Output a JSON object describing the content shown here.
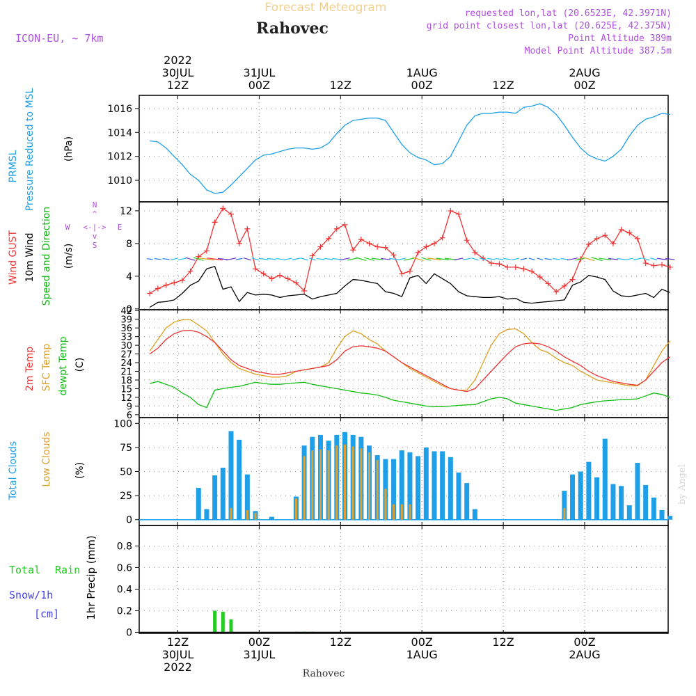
{
  "header": {
    "product": "Forecast Meteogram",
    "location": "Rahovec",
    "model": "ICON-EU, ~ 7km",
    "requested": "requested lon,lat (20.6523E, 42.3971N)",
    "grid_point": "grid point closest lon,lat (20.625E, 42.375N)",
    "point_altitude": "Point Altitude 389m",
    "model_altitude": "Model Point Altitude 387.5m"
  },
  "footer": {
    "location": "Rahovec",
    "credit": "by Angel"
  },
  "time_axis": {
    "ticks": [
      "12Z",
      "00Z",
      "12Z",
      "00Z",
      "12Z",
      "00Z"
    ],
    "top_dates": [
      {
        "tick": 0,
        "lines": [
          "2022",
          "30JUL",
          "12Z"
        ]
      },
      {
        "tick": 1,
        "lines": [
          "31JUL",
          "00Z"
        ]
      },
      {
        "tick": 2,
        "lines": [
          "12Z"
        ]
      },
      {
        "tick": 3,
        "lines": [
          "1AUG",
          "00Z"
        ]
      },
      {
        "tick": 4,
        "lines": [
          "12Z"
        ]
      },
      {
        "tick": 5,
        "lines": [
          "2AUG",
          "00Z"
        ]
      }
    ],
    "bottom_dates": [
      {
        "tick": 0,
        "lines": [
          "12Z",
          "30JUL",
          "2022"
        ]
      },
      {
        "tick": 1,
        "lines": [
          "00Z",
          "31JUL"
        ]
      },
      {
        "tick": 2,
        "lines": [
          "12Z"
        ]
      },
      {
        "tick": 3,
        "lines": [
          "00Z",
          "1AUG"
        ]
      },
      {
        "tick": 4,
        "lines": [
          "12Z"
        ]
      },
      {
        "tick": 5,
        "lines": [
          "00Z",
          "2AUG"
        ]
      }
    ]
  },
  "panel_labels": {
    "pressure": {
      "lines": [
        "PRMSL",
        "Pressure Reduced to MSL"
      ],
      "unit": "(hPa)"
    },
    "wind": {
      "gust": "Wind GUST",
      "wind": "10m Wind",
      "dir": "Speed and Direction",
      "unit": "(m/s)",
      "compass": {
        "n": "N",
        "s": "S",
        "w": "W",
        "e": "E",
        "mid": "<-|->",
        "vert1": "^",
        "vert2": "|",
        "vert3": "v"
      }
    },
    "temp": {
      "t2m": "2m Temp",
      "sfc": "SFC Temp",
      "dew": "dewpt Temp",
      "unit": "(C)"
    },
    "clouds": {
      "total": "Total Clouds",
      "low": "Low Clouds",
      "unit": "(%)"
    },
    "precip": {
      "total": "Total",
      "rain": "Rain",
      "snow": "Snow/1h",
      "cm": "[cm]",
      "axis": "1hr Precip (mm)"
    }
  },
  "colors": {
    "pressure": "#1E9FE8",
    "gust": "#EE3333",
    "wind": "#000000",
    "t2m": "#EE3333",
    "sfc": "#E0A020",
    "dew": "#11BB11",
    "total_cloud": "#1E9FE8",
    "low_cloud": "#E0A030",
    "rain": "#22CC22",
    "snow": "#4444EE",
    "header_orange": "#F0D090",
    "header_purple": "#B050E0"
  },
  "chart_data": [
    {
      "type": "line",
      "id": "pressure",
      "ylabel": "(hPa)",
      "yticks": [
        1010,
        1012,
        1014,
        1016
      ],
      "ylim": [
        1008.2,
        1017.1
      ],
      "x_hours": [
        0,
        1,
        2,
        3,
        4,
        5,
        6,
        7,
        8,
        9,
        10,
        11,
        12,
        13,
        14,
        15,
        16,
        17,
        18,
        19,
        20,
        21,
        22,
        23,
        24,
        25,
        26,
        27,
        28,
        29,
        30,
        31,
        32,
        33,
        34,
        35,
        36,
        37,
        38,
        39,
        40,
        41,
        42,
        43,
        44,
        45,
        46,
        47,
        48,
        49,
        50,
        51,
        52,
        53,
        54,
        55,
        56,
        57,
        58,
        59,
        60,
        61,
        62,
        63,
        64
      ],
      "series": [
        {
          "name": "PRMSL",
          "values": [
            1013.3,
            1013.2,
            1012.7,
            1012.0,
            1011.3,
            1010.5,
            1010.0,
            1009.2,
            1008.9,
            1009.0,
            1009.6,
            1010.3,
            1011.0,
            1011.7,
            1012.1,
            1012.2,
            1012.4,
            1012.6,
            1012.7,
            1012.7,
            1012.6,
            1012.7,
            1013.1,
            1013.9,
            1014.6,
            1015.0,
            1015.1,
            1015.2,
            1015.2,
            1015.0,
            1014.0,
            1013.0,
            1012.3,
            1011.9,
            1011.7,
            1011.3,
            1011.4,
            1012.0,
            1013.3,
            1014.6,
            1015.4,
            1015.6,
            1015.6,
            1015.7,
            1015.7,
            1015.6,
            1016.1,
            1016.2,
            1016.4,
            1016.1,
            1015.5,
            1014.6,
            1013.6,
            1012.7,
            1012.1,
            1011.8,
            1011.6,
            1012.0,
            1012.6,
            1013.7,
            1014.6,
            1015.1,
            1015.3,
            1015.6,
            1015.5
          ]
        }
      ]
    },
    {
      "type": "line",
      "id": "wind",
      "ylabel": "(m/s)",
      "yticks": [
        0,
        4,
        8,
        12
      ],
      "ylim": [
        -0.1,
        13.1
      ],
      "x_hours": [
        0,
        1,
        2,
        3,
        4,
        5,
        6,
        7,
        8,
        9,
        10,
        11,
        12,
        13,
        14,
        15,
        16,
        17,
        18,
        19,
        20,
        21,
        22,
        23,
        24,
        25,
        26,
        27,
        28,
        29,
        30,
        31,
        32,
        33,
        34,
        35,
        36,
        37,
        38,
        39,
        40,
        41,
        42,
        43,
        44,
        45,
        46,
        47,
        48,
        49,
        50,
        51,
        52,
        53,
        54,
        55,
        56,
        57,
        58,
        59,
        60,
        61,
        62,
        63,
        64
      ],
      "series": [
        {
          "name": "Wind GUST",
          "values": [
            1.9,
            2.5,
            2.9,
            3.2,
            3.5,
            4.6,
            6.4,
            7.1,
            10.6,
            12.3,
            11.6,
            8.0,
            9.8,
            4.9,
            4.3,
            3.7,
            4.1,
            3.7,
            3.2,
            2.2,
            6.5,
            7.6,
            8.6,
            9.8,
            10.3,
            7.2,
            8.5,
            8.0,
            7.6,
            7.5,
            6.6,
            4.3,
            4.6,
            6.9,
            7.6,
            8.0,
            8.7,
            12.0,
            11.6,
            8.4,
            6.9,
            6.2,
            5.6,
            5.5,
            5.1,
            5.1,
            4.9,
            4.6,
            3.9,
            3.1,
            2.1,
            2.8,
            3.6,
            6.1,
            7.9,
            8.6,
            9.0,
            8.0,
            9.7,
            9.3,
            8.6,
            5.6,
            5.3,
            5.4,
            5.1
          ]
        },
        {
          "name": "10m Wind",
          "values": [
            0.2,
            0.8,
            0.9,
            1.1,
            1.9,
            2.9,
            3.4,
            4.9,
            5.2,
            2.4,
            2.7,
            0.9,
            2.0,
            1.7,
            1.8,
            1.7,
            1.4,
            1.6,
            1.7,
            1.8,
            1.2,
            1.5,
            1.7,
            1.9,
            2.8,
            3.6,
            3.5,
            3.3,
            3.1,
            2.1,
            1.9,
            1.5,
            3.8,
            4.1,
            3.1,
            4.3,
            3.7,
            3.1,
            2.1,
            1.6,
            1.5,
            1.4,
            1.4,
            1.5,
            1.2,
            1.3,
            0.8,
            0.7,
            0.8,
            0.9,
            1.0,
            1.1,
            2.9,
            3.3,
            4.1,
            3.9,
            3.6,
            2.2,
            1.6,
            1.5,
            1.7,
            1.9,
            1.4,
            2.4,
            2.0
          ]
        }
      ]
    },
    {
      "type": "line",
      "id": "temperature",
      "ylabel": "(C)",
      "yticks": [
        6,
        9,
        12,
        15,
        18,
        21,
        24,
        27,
        30,
        33,
        36,
        39,
        42
      ],
      "ylim": [
        5.0,
        42.3
      ],
      "x_hours": [
        0,
        1,
        2,
        3,
        4,
        5,
        6,
        7,
        8,
        9,
        10,
        11,
        12,
        13,
        14,
        15,
        16,
        17,
        18,
        19,
        20,
        21,
        22,
        23,
        24,
        25,
        26,
        27,
        28,
        29,
        30,
        31,
        32,
        33,
        34,
        35,
        36,
        37,
        38,
        39,
        40,
        41,
        42,
        43,
        44,
        45,
        46,
        47,
        48,
        49,
        50,
        51,
        52,
        53,
        54,
        55,
        56,
        57,
        58,
        59,
        60,
        61,
        62,
        63,
        64
      ],
      "series": [
        {
          "name": "2m Temp",
          "values": [
            27,
            29,
            32,
            34,
            35,
            35.2,
            34.5,
            33,
            31,
            28,
            25,
            23,
            22,
            21,
            20.5,
            20,
            20,
            20.5,
            21,
            21.5,
            22,
            22.5,
            23,
            25,
            28,
            29.5,
            29.8,
            29.5,
            29,
            28,
            26,
            24,
            22.5,
            21,
            19.5,
            18,
            16.5,
            15,
            14.5,
            14,
            15,
            18,
            21,
            24,
            27,
            29.5,
            30.5,
            30.8,
            30.5,
            29.5,
            28,
            26,
            24.5,
            23,
            21,
            19.5,
            18.5,
            17.5,
            17,
            16.5,
            16.2,
            18,
            21,
            24,
            26
          ]
        },
        {
          "name": "SFC Temp",
          "values": [
            28,
            32,
            36,
            38,
            38.8,
            38.8,
            37,
            35,
            31,
            27,
            24,
            22,
            21,
            20,
            19.5,
            19,
            19,
            19.5,
            21,
            21.5,
            22,
            22.5,
            24,
            29,
            33,
            35,
            34,
            32,
            30.5,
            28,
            26,
            24,
            22,
            20.5,
            19,
            17.5,
            16,
            15,
            14.5,
            14.5,
            18,
            24,
            30,
            34,
            35.5,
            35.7,
            34,
            31,
            28.5,
            27.5,
            25.5,
            24,
            23,
            21,
            19.5,
            18,
            17.5,
            17,
            16.5,
            16,
            16,
            18,
            23,
            28,
            31.5
          ]
        },
        {
          "name": "dewpt Temp",
          "values": [
            16.8,
            17.5,
            16.5,
            15.5,
            13.5,
            12,
            9.5,
            8.5,
            14.5,
            15,
            15.5,
            15.8,
            16.5,
            17.2,
            16.8,
            16.5,
            16.5,
            16.8,
            17,
            17.2,
            16.5,
            16,
            15.5,
            15,
            14.5,
            14,
            13.5,
            13.2,
            12.8,
            12,
            11,
            10.5,
            10,
            9.5,
            9,
            8.8,
            8.8,
            9,
            9.2,
            9.4,
            9.5,
            10.5,
            11.5,
            12,
            11.5,
            10,
            9.5,
            9,
            8.5,
            8,
            7.5,
            8,
            8.5,
            9.5,
            10,
            10.5,
            10.8,
            11,
            11.2,
            11.3,
            11.5,
            12.5,
            13.5,
            13,
            12
          ]
        }
      ]
    },
    {
      "type": "bar",
      "id": "clouds",
      "ylabel": "(%)",
      "yticks": [
        0,
        25,
        50,
        75,
        100
      ],
      "ylim": [
        -6,
        106
      ],
      "x_hours": [
        0,
        1,
        2,
        3,
        4,
        5,
        6,
        7,
        8,
        9,
        10,
        11,
        12,
        13,
        14,
        15,
        16,
        17,
        18,
        19,
        20,
        21,
        22,
        23,
        24,
        25,
        26,
        27,
        28,
        29,
        30,
        31,
        32,
        33,
        34,
        35,
        36,
        37,
        38,
        39,
        40,
        41,
        42,
        43,
        44,
        45,
        46,
        47,
        48,
        49,
        50,
        51,
        52,
        53,
        54,
        55,
        56,
        57,
        58,
        59,
        60,
        61,
        62,
        63,
        64
      ],
      "series": [
        {
          "name": "Total Clouds",
          "values": [
            0,
            0,
            0,
            0,
            0,
            0,
            33,
            11,
            46,
            54,
            92,
            83,
            47,
            9,
            0,
            3,
            0,
            0,
            24,
            77,
            86,
            88,
            82,
            88,
            91,
            88,
            86,
            77,
            67,
            63,
            63,
            72,
            70,
            66,
            75,
            71,
            71,
            65,
            49,
            38,
            11,
            0,
            0,
            0,
            0,
            0,
            0,
            0,
            0,
            0,
            0,
            30,
            47,
            50,
            60,
            44,
            84,
            37,
            35,
            15,
            59,
            36,
            23,
            10,
            4
          ]
        },
        {
          "name": "Low Clouds",
          "values": [
            0,
            0,
            0,
            0,
            0,
            0,
            0,
            0,
            0,
            0,
            12,
            0,
            10,
            7,
            0,
            0,
            0,
            0,
            22,
            66,
            72,
            73,
            72,
            77,
            78,
            76,
            74,
            70,
            62,
            32,
            16,
            16,
            16,
            0,
            0,
            0,
            0,
            0,
            0,
            0,
            0,
            0,
            0,
            0,
            0,
            0,
            0,
            0,
            0,
            0,
            0,
            12,
            0,
            0,
            0,
            0,
            0,
            0,
            0,
            0,
            0,
            0,
            0,
            0,
            0
          ]
        }
      ]
    },
    {
      "type": "bar",
      "id": "precip",
      "ylabel": "1hr Precip (mm)",
      "yticks": [
        0,
        0.2,
        0.4,
        0.6,
        0.8
      ],
      "ylim": [
        -0.01,
        0.99
      ],
      "x_hours": [
        8,
        9,
        10,
        18,
        19,
        20
      ],
      "series": [
        {
          "name": "Total Rain",
          "values": [
            0.2,
            0.19,
            0.12,
            0.005,
            0.005,
            0.005
          ]
        },
        {
          "name": "Snow/1h",
          "values": [
            0,
            0,
            0,
            0,
            0,
            0
          ]
        }
      ]
    }
  ]
}
